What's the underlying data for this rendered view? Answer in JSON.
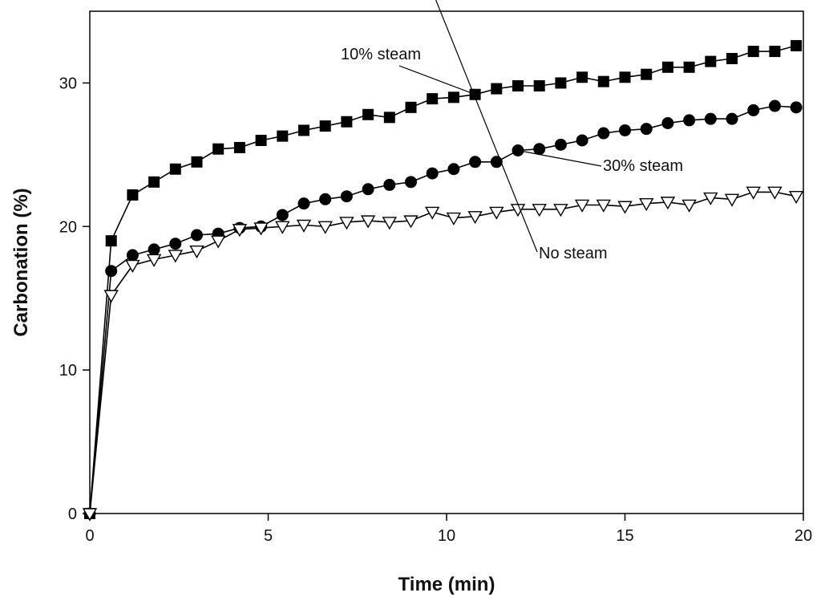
{
  "chart_data": {
    "type": "line",
    "title": "",
    "xlabel": "Time (min)",
    "ylabel": "Carbonation (%)",
    "xlim": [
      0,
      20
    ],
    "ylim": [
      0,
      35
    ],
    "xticks": [
      0,
      5,
      10,
      15,
      20
    ],
    "yticks": [
      0,
      10,
      20,
      30
    ],
    "grid": false,
    "colors": {
      "line": "#000000",
      "background": "#ffffff"
    },
    "annotations": [
      {
        "text": "10% steam",
        "series": 0,
        "point_x": 10.8
      },
      {
        "text": "30% steam",
        "series": 1,
        "point_x": 12.0
      },
      {
        "text": "No steam",
        "series": 2,
        "point_x": 9.7
      }
    ],
    "series": [
      {
        "name": "10% steam",
        "marker": "square-filled",
        "x": [
          0,
          0.6,
          1.2,
          1.8,
          2.4,
          3.0,
          3.6,
          4.2,
          4.8,
          5.4,
          6.0,
          6.6,
          7.2,
          7.8,
          8.4,
          9.0,
          9.6,
          10.2,
          10.8,
          11.4,
          12.0,
          12.6,
          13.2,
          13.8,
          14.4,
          15.0,
          15.6,
          16.2,
          16.8,
          17.4,
          18.0,
          18.6,
          19.2,
          19.8
        ],
        "y": [
          0,
          19.0,
          22.2,
          23.1,
          24.0,
          24.5,
          25.4,
          25.5,
          26.0,
          26.3,
          26.7,
          27.0,
          27.3,
          27.8,
          27.6,
          28.3,
          28.9,
          29.0,
          29.2,
          29.6,
          29.8,
          29.8,
          30.0,
          30.4,
          30.1,
          30.4,
          30.6,
          31.1,
          31.1,
          31.5,
          31.7,
          32.2,
          32.2,
          32.6
        ]
      },
      {
        "name": "30% steam",
        "marker": "circle-filled",
        "x": [
          0,
          0.6,
          1.2,
          1.8,
          2.4,
          3.0,
          3.6,
          4.2,
          4.8,
          5.4,
          6.0,
          6.6,
          7.2,
          7.8,
          8.4,
          9.0,
          9.6,
          10.2,
          10.8,
          11.4,
          12.0,
          12.6,
          13.2,
          13.8,
          14.4,
          15.0,
          15.6,
          16.2,
          16.8,
          17.4,
          18.0,
          18.6,
          19.2,
          19.8
        ],
        "y": [
          0,
          16.9,
          18.0,
          18.4,
          18.8,
          19.4,
          19.5,
          19.9,
          20.0,
          20.8,
          21.6,
          21.9,
          22.1,
          22.6,
          22.9,
          23.1,
          23.7,
          24.0,
          24.5,
          24.5,
          25.3,
          25.4,
          25.7,
          26.0,
          26.5,
          26.7,
          26.8,
          27.2,
          27.4,
          27.5,
          27.5,
          28.1,
          28.4,
          28.3
        ]
      },
      {
        "name": "No steam",
        "marker": "triangle-down-open",
        "x": [
          0,
          0.6,
          1.2,
          1.8,
          2.4,
          3.0,
          3.6,
          4.2,
          4.8,
          5.4,
          6.0,
          6.6,
          7.2,
          7.8,
          8.4,
          9.0,
          9.6,
          10.2,
          10.8,
          11.4,
          12.0,
          12.6,
          13.2,
          13.8,
          14.4,
          15.0,
          15.6,
          16.2,
          16.8,
          17.4,
          18.0,
          18.6,
          19.2,
          19.8
        ],
        "y": [
          0,
          15.2,
          17.3,
          17.7,
          18.0,
          18.3,
          19.0,
          19.8,
          19.9,
          20.0,
          20.1,
          20.0,
          20.3,
          20.4,
          20.3,
          20.4,
          21.0,
          20.6,
          20.7,
          21.0,
          21.2,
          21.2,
          21.2,
          21.5,
          21.5,
          21.4,
          21.6,
          21.7,
          21.5,
          22.0,
          21.9,
          22.4,
          22.4,
          22.1
        ]
      }
    ]
  }
}
